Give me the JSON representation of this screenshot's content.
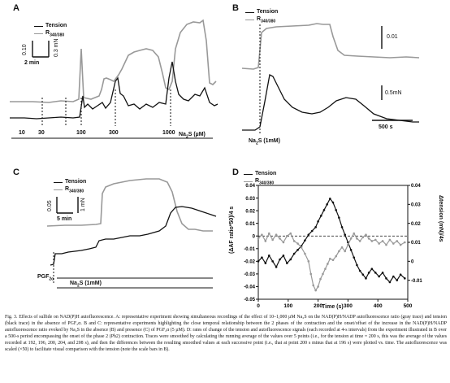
{
  "colors": {
    "tension": "#111111",
    "autofluorescence": "#999999"
  },
  "panel_a": {
    "label": "A",
    "legend": {
      "tension": "Tension",
      "ratio_main": "R",
      "ratio_sub": "340/380"
    },
    "scalebar_y": "0.10",
    "scalebar_tension": "0.3 mN",
    "scalebar_time": "2 min",
    "doses": [
      "10",
      "30",
      "100",
      "300",
      "1000"
    ],
    "agent": "Na",
    "agent_sub": "2",
    "agent_suffix": "S (µM)"
  },
  "panel_b": {
    "label": "B",
    "legend": {
      "tension": "Tension",
      "ratio_main": "R",
      "ratio_sub": "340/380"
    },
    "scalebar_ratio": "0.01",
    "scalebar_tension": "0.5mN",
    "scalebar_time": "500 s",
    "agent": "Na",
    "agent_sub": "2",
    "agent_suffix": "S (1mM)"
  },
  "panel_c": {
    "label": "C",
    "legend": {
      "tension": "Tension",
      "ratio_main": "R",
      "ratio_sub": "340/380"
    },
    "scalebar_ratio": "0.05",
    "scalebar_time": "5 min",
    "scalebar_tension": "1 mN",
    "agent1": "PGF",
    "agent1_sub": "2α",
    "agent2": "Na",
    "agent2_sub": "2",
    "agent2_suffix": "S (1mM)"
  },
  "panel_d": {
    "label": "D",
    "legend": {
      "tension": "Tension",
      "ratio_main": "R",
      "ratio_sub": "340/380"
    },
    "chart_data": {
      "type": "line",
      "xlabel": "Time (s)",
      "ylabel_left": "(ΔAF ratio*50)/4 s",
      "ylabel_right": "Δtension (mN)/4s",
      "xlim": [
        0,
        500
      ],
      "ylim_left": [
        -0.05,
        0.04
      ],
      "ylim_right": [
        -0.02,
        0.04
      ],
      "x_ticks": [
        "0",
        "100",
        "200",
        "300",
        "400",
        "500"
      ],
      "y_ticks_left": [
        "0.04",
        "0.03",
        "0.02",
        "0.01",
        "0",
        "-0.01",
        "-0.02",
        "-0.03",
        "-0.04",
        "-0.05"
      ],
      "y_ticks_right": [
        "0.04",
        "0.03",
        "0.02",
        "0.01",
        "0",
        "-0.01"
      ],
      "series": [
        {
          "name": "Tension",
          "axis": "right",
          "x": [
            0,
            12,
            24,
            36,
            48,
            60,
            72,
            84,
            96,
            108,
            120,
            132,
            144,
            156,
            168,
            180,
            192,
            200,
            210,
            220,
            230,
            240,
            250,
            260,
            270,
            280,
            290,
            300,
            310,
            320,
            330,
            340,
            350,
            360,
            370,
            380,
            392,
            404,
            416,
            428,
            440,
            452,
            464,
            476,
            490
          ],
          "y": [
            0.0,
            0.002,
            -0.001,
            0.003,
            0.0,
            -0.003,
            0.001,
            0.003,
            -0.001,
            0.001,
            0.004,
            0.006,
            0.008,
            0.011,
            0.014,
            0.016,
            0.018,
            0.021,
            0.024,
            0.027,
            0.03,
            0.033,
            0.031,
            0.027,
            0.023,
            0.018,
            0.014,
            0.01,
            0.006,
            0.002,
            -0.002,
            -0.005,
            -0.007,
            -0.009,
            -0.006,
            -0.004,
            -0.006,
            -0.008,
            -0.006,
            -0.009,
            -0.011,
            -0.008,
            -0.01,
            -0.007,
            -0.009
          ]
        },
        {
          "name": "R340/380",
          "axis": "left",
          "x": [
            0,
            12,
            24,
            36,
            48,
            60,
            72,
            84,
            96,
            108,
            120,
            132,
            144,
            156,
            168,
            176,
            184,
            192,
            200,
            208,
            216,
            224,
            232,
            240,
            250,
            260,
            270,
            280,
            290,
            300,
            310,
            320,
            330,
            340,
            350,
            360,
            370,
            380,
            392,
            404,
            416,
            428,
            440,
            452,
            464,
            476,
            490
          ],
          "y": [
            -0.002,
            0.001,
            -0.004,
            0.002,
            -0.003,
            0.001,
            -0.002,
            -0.005,
            0.0,
            0.002,
            -0.004,
            -0.006,
            -0.009,
            -0.014,
            -0.02,
            -0.03,
            -0.039,
            -0.043,
            -0.04,
            -0.034,
            -0.03,
            -0.026,
            -0.022,
            -0.018,
            -0.019,
            -0.016,
            -0.012,
            -0.009,
            -0.012,
            -0.007,
            -0.002,
            0.002,
            -0.002,
            -0.004,
            -0.001,
            0.001,
            -0.002,
            -0.004,
            -0.003,
            -0.006,
            -0.004,
            -0.007,
            -0.003,
            -0.006,
            -0.004,
            -0.007,
            -0.005
          ]
        }
      ]
    }
  },
  "caption": "Fig. 3. Effects of sulfide on NAD(P)H autofluorescence. A: representative experiment showing simultaneous recordings of the effect of 10–1,000 µM Na₂S on the NAD(P)H/NADP autofluorescence ratio (gray trace) and tension (black trace) in the absence of PGF₂α. B and C: representative experiments highlighting the close temporal relationship between the 2 phases of the contraction and the onset/offset of the increase in the NAD(P)H/NADP autofluorescence ratio evoked by Na₂S in the absence (B) and presence (C) of PGF₂α (5 µM). D: rates of change of the tension and autofluorescence signals (each recorded at 4-s intervals) from the experiment illustrated in B over a 500-s period encompassing the onset of the phase 2 (Ph2) contraction. Traces were smoothed by calculating the running average of the values over 5 points (i.e., for the tension at time = 200 s, this was the average of the values recorded at 192, 196, 200, 204, and 208 s), and then the differences between the resulting smoothed values at each successive point (i.e., that at point 200 s minus that at 196 s) were plotted vs. time. The autofluorescence was scaled (×50) to facilitate visual comparison with the tension (note the scale bars in B)."
}
